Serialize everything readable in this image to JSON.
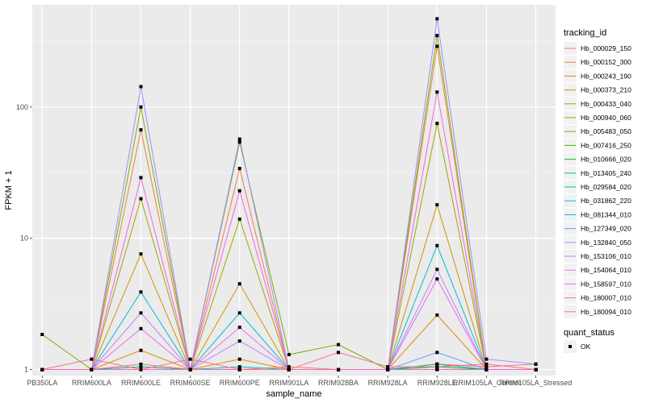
{
  "chart_data": {
    "type": "line",
    "xlabel": "sample_name",
    "ylabel": "FPKM + 1",
    "y_scale": "log10",
    "ylim": [
      0.9,
      600
    ],
    "y_ticks": [
      1,
      10,
      100
    ],
    "y_tick_labels": [
      "1",
      "10",
      "100"
    ],
    "grid": true,
    "legend_position": "right",
    "categories": [
      "PB350LA",
      "RRIM600LA",
      "RRIM600LE",
      "RRIM600SE",
      "RRIM600PE",
      "RRIM901LA",
      "RRIM928BA",
      "RRIM928LA",
      "RRIM928LE",
      "RRIM105LA_Control",
      "RRIM105LA_Stressed"
    ],
    "legend_title": "tracking_id",
    "series": [
      {
        "name": "Hb_000029_150",
        "color": "#F8766D",
        "values": [
          1.0,
          1.0,
          1.1,
          1.0,
          1.0,
          1.05,
          1.0,
          1.0,
          1.1,
          1.05,
          1.1
        ]
      },
      {
        "name": "Hb_000152_300",
        "color": "#EF7F47",
        "values": [
          1.0,
          1.0,
          67,
          1.0,
          34,
          1.0,
          1.0,
          1.0,
          290,
          1.0,
          1.0
        ]
      },
      {
        "name": "Hb_000243_190",
        "color": "#DE8C00",
        "values": [
          1.0,
          1.0,
          1.4,
          1.0,
          1.2,
          1.0,
          1.0,
          1.0,
          2.6,
          1.0,
          1.0
        ]
      },
      {
        "name": "Hb_000373_210",
        "color": "#CD9600",
        "values": [
          1.0,
          1.0,
          7.6,
          1.0,
          4.5,
          1.0,
          1.0,
          1.0,
          18,
          1.0,
          1.0
        ]
      },
      {
        "name": "Hb_000433_040",
        "color": "#B79F00",
        "values": [
          1.0,
          1.0,
          1.0,
          1.0,
          1.0,
          1.0,
          1.0,
          1.0,
          1.0,
          1.0,
          1.0
        ]
      },
      {
        "name": "Hb_000940_060",
        "color": "#9DA700",
        "values": [
          1.0,
          1.0,
          20,
          1.0,
          14,
          1.0,
          1.0,
          1.0,
          75,
          1.0,
          1.0
        ]
      },
      {
        "name": "Hb_005483_050",
        "color": "#7CAE00",
        "values": [
          1.85,
          1.0,
          100,
          1.0,
          54,
          1.3,
          1.55,
          1.0,
          350,
          1.0,
          1.0
        ]
      },
      {
        "name": "Hb_007416_250",
        "color": "#49B500",
        "values": [
          1.0,
          1.0,
          1.05,
          1.0,
          1.0,
          1.0,
          1.0,
          1.0,
          1.1,
          1.0,
          1.0
        ]
      },
      {
        "name": "Hb_010666_020",
        "color": "#00BA38",
        "values": [
          1.0,
          1.0,
          1.0,
          1.0,
          1.0,
          1.0,
          1.0,
          1.0,
          1.05,
          1.0,
          1.0
        ]
      },
      {
        "name": "Hb_013405_240",
        "color": "#00BE6C",
        "values": [
          1.0,
          1.0,
          1.0,
          1.0,
          1.0,
          1.0,
          1.0,
          1.0,
          1.0,
          1.0,
          1.0
        ]
      },
      {
        "name": "Hb_029584_020",
        "color": "#00C0AF",
        "values": [
          1.0,
          1.0,
          1.05,
          1.0,
          1.05,
          1.0,
          1.0,
          1.0,
          1.1,
          1.0,
          1.0
        ]
      },
      {
        "name": "Hb_031862_220",
        "color": "#00BCD8",
        "values": [
          1.0,
          1.0,
          3.9,
          1.0,
          2.7,
          1.0,
          1.0,
          1.0,
          8.8,
          1.0,
          1.0
        ]
      },
      {
        "name": "Hb_081344_010",
        "color": "#00B0F6",
        "values": [
          1.0,
          1.0,
          1.0,
          1.0,
          1.0,
          1.0,
          1.0,
          1.0,
          1.0,
          1.0,
          1.0
        ]
      },
      {
        "name": "Hb_127349_020",
        "color": "#619CFF",
        "values": [
          1.0,
          1.0,
          1.0,
          1.0,
          1.0,
          1.0,
          1.0,
          1.0,
          1.35,
          1.0,
          1.0
        ]
      },
      {
        "name": "Hb_132840_050",
        "color": "#9F8CFF",
        "values": [
          1.0,
          1.0,
          143,
          1.0,
          57,
          1.0,
          1.0,
          1.0,
          470,
          1.2,
          1.1
        ]
      },
      {
        "name": "Hb_153106_010",
        "color": "#C77CFF",
        "values": [
          1.0,
          1.0,
          2.7,
          1.0,
          1.65,
          1.0,
          1.0,
          1.0,
          5.8,
          1.0,
          1.0
        ]
      },
      {
        "name": "Hb_154064_010",
        "color": "#E76BF3",
        "values": [
          1.0,
          1.0,
          2.05,
          1.0,
          2.1,
          1.0,
          1.0,
          1.0,
          4.9,
          1.0,
          1.0
        ]
      },
      {
        "name": "Hb_158597_010",
        "color": "#F564E3",
        "values": [
          1.0,
          1.0,
          29,
          1.0,
          23,
          1.0,
          1.0,
          1.0,
          130,
          1.0,
          1.0
        ]
      },
      {
        "name": "Hb_180007_010",
        "color": "#FF61C3",
        "values": [
          1.0,
          1.0,
          1.0,
          1.0,
          1.0,
          1.0,
          1.0,
          1.0,
          1.0,
          1.0,
          1.0
        ]
      },
      {
        "name": "Hb_180094_010",
        "color": "#FF6C91",
        "values": [
          1.0,
          1.2,
          1.0,
          1.2,
          1.0,
          1.0,
          1.35,
          1.05,
          1.05,
          1.1,
          1.0
        ]
      }
    ],
    "point_legend_title": "quant_status",
    "point_legend_label": "OK",
    "panel_background": "#EBEBEB",
    "grid_color": "#FFFFFF",
    "point_color": "#000000"
  }
}
